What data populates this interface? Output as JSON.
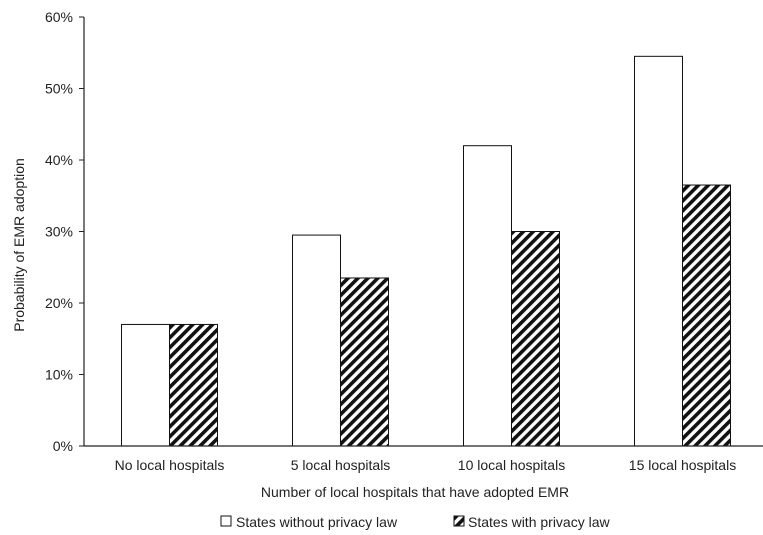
{
  "chart_data": {
    "type": "bar",
    "title": "",
    "xlabel": "Number of local hospitals that have adopted EMR",
    "ylabel": "Probability of EMR adoption",
    "categories": [
      "No local hospitals",
      "5 local hospitals",
      "10 local hospitals",
      "15 local hospitals"
    ],
    "series": [
      {
        "name": "States without privacy law",
        "values": [
          17,
          29.5,
          42,
          54.5
        ],
        "fill": "white"
      },
      {
        "name": "States with privacy law",
        "values": [
          17,
          23.5,
          30,
          36.5
        ],
        "fill": "hatched"
      }
    ],
    "ylim": [
      0,
      60
    ],
    "yticks": [
      "0%",
      "10%",
      "20%",
      "30%",
      "40%",
      "50%",
      "60%"
    ],
    "ytick_values": [
      0,
      10,
      20,
      30,
      40,
      50,
      60
    ],
    "grid": false,
    "legend_position": "bottom"
  }
}
